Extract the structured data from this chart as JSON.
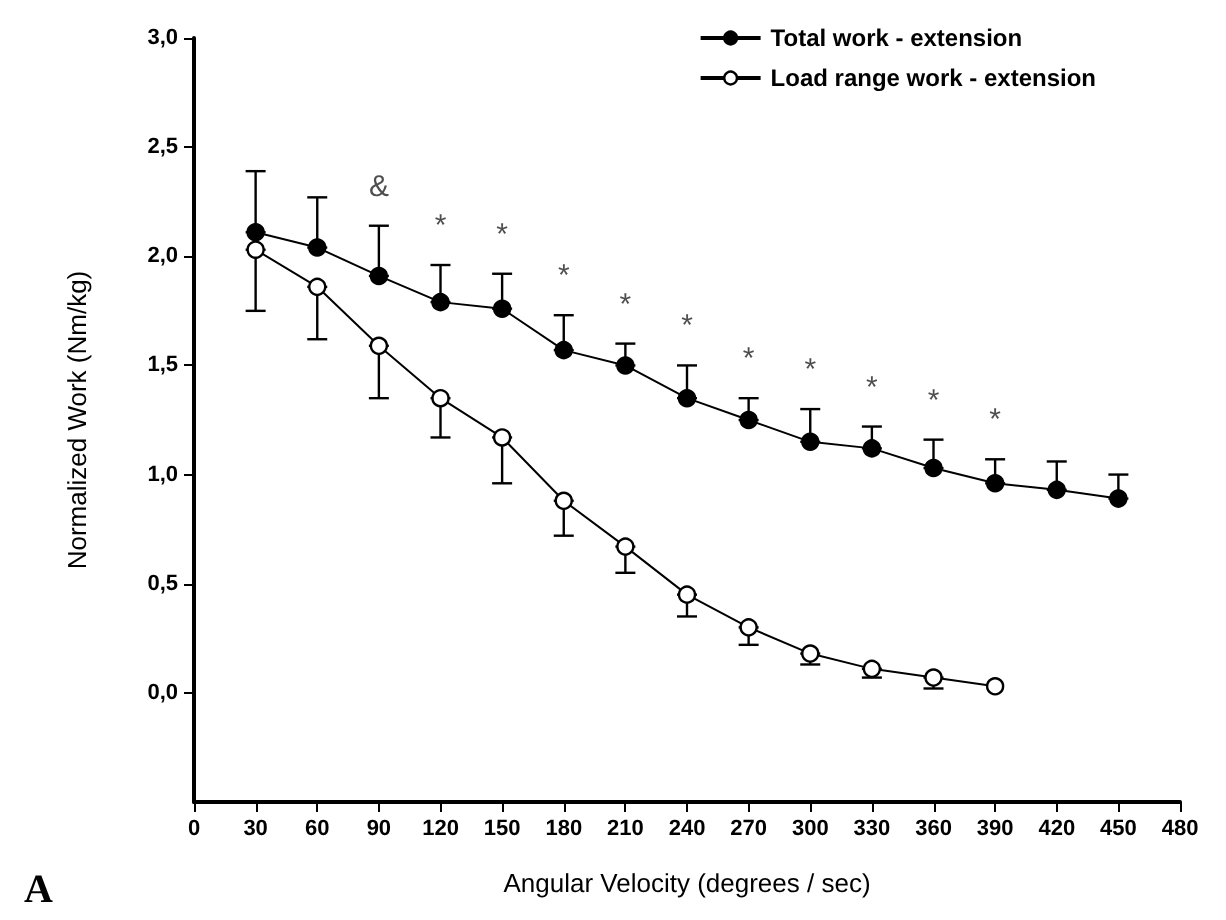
{
  "chart_data": {
    "type": "line",
    "xlabel": "Angular Velocity (degrees / sec)",
    "ylabel": "Normalized Work (Nm/kg)",
    "x": [
      30,
      60,
      90,
      120,
      150,
      180,
      210,
      240,
      270,
      300,
      330,
      360,
      390,
      420,
      450
    ],
    "series": [
      {
        "name": "Total work - extension",
        "color": "#000000",
        "values": [
          2.11,
          2.04,
          1.91,
          1.79,
          1.76,
          1.57,
          1.5,
          1.35,
          1.25,
          1.15,
          1.12,
          1.03,
          0.96,
          0.93,
          0.89
        ],
        "errors": [
          [
            2.11,
            2.39
          ],
          [
            2.04,
            2.27
          ],
          [
            1.91,
            2.14
          ],
          [
            1.79,
            1.96
          ],
          [
            1.76,
            1.92
          ],
          [
            1.57,
            1.73
          ],
          [
            1.5,
            1.6
          ],
          [
            1.35,
            1.5
          ],
          [
            1.25,
            1.35
          ],
          [
            1.15,
            1.3
          ],
          [
            1.12,
            1.22
          ],
          [
            1.03,
            1.16
          ],
          [
            0.96,
            1.07
          ],
          [
            0.93,
            1.06
          ],
          [
            0.89,
            1.0
          ]
        ]
      },
      {
        "name": "Load range work - extension",
        "color": "#ffffff",
        "values": [
          2.03,
          1.86,
          1.59,
          1.35,
          1.17,
          0.88,
          0.67,
          0.45,
          0.3,
          0.18,
          0.11,
          0.07,
          0.03,
          null,
          null
        ],
        "errors": [
          [
            1.75,
            2.03
          ],
          [
            1.62,
            1.86
          ],
          [
            1.35,
            1.59
          ],
          [
            1.17,
            1.35
          ],
          [
            0.96,
            1.17
          ],
          [
            0.72,
            0.88
          ],
          [
            0.55,
            0.67
          ],
          [
            0.35,
            0.45
          ],
          [
            0.22,
            0.3
          ],
          [
            0.13,
            0.18
          ],
          [
            0.07,
            0.11
          ],
          [
            0.02,
            0.07
          ],
          null,
          null,
          null
        ]
      }
    ],
    "xlim": [
      0,
      480
    ],
    "xticks": [
      0,
      30,
      60,
      90,
      120,
      150,
      180,
      210,
      240,
      270,
      300,
      330,
      360,
      390,
      420,
      450,
      480
    ],
    "ylim": [
      -0.5,
      3
    ],
    "yticks": [
      {
        "value": 0,
        "label": "0,0"
      },
      {
        "value": 0.5,
        "label": "0,5"
      },
      {
        "value": 1,
        "label": "1,0"
      },
      {
        "value": 1.5,
        "label": "1,5"
      },
      {
        "value": 2,
        "label": "2,0"
      },
      {
        "value": 2.5,
        "label": "2,5"
      },
      {
        "value": 3,
        "label": "3,0"
      }
    ],
    "annotations": [
      {
        "text": "&",
        "x": 90,
        "y": 1.91
      },
      {
        "text": "*",
        "x": 120,
        "y": 1.79
      },
      {
        "text": "*",
        "x": 150,
        "y": 1.76
      },
      {
        "text": "*",
        "x": 180,
        "y": 1.57
      },
      {
        "text": "*",
        "x": 210,
        "y": 1.5
      },
      {
        "text": "*",
        "x": 240,
        "y": 1.35
      },
      {
        "text": "*",
        "x": 270,
        "y": 1.25
      },
      {
        "text": "*",
        "x": 300,
        "y": 1.15
      },
      {
        "text": "*",
        "x": 330,
        "y": 1.12
      },
      {
        "text": "*",
        "x": 360,
        "y": 1.03
      },
      {
        "text": "*",
        "x": 390,
        "y": 0.96
      },
      "A"
    ],
    "marker": "circle",
    "line_style": "solid",
    "grid": false,
    "legend": "top right"
  }
}
